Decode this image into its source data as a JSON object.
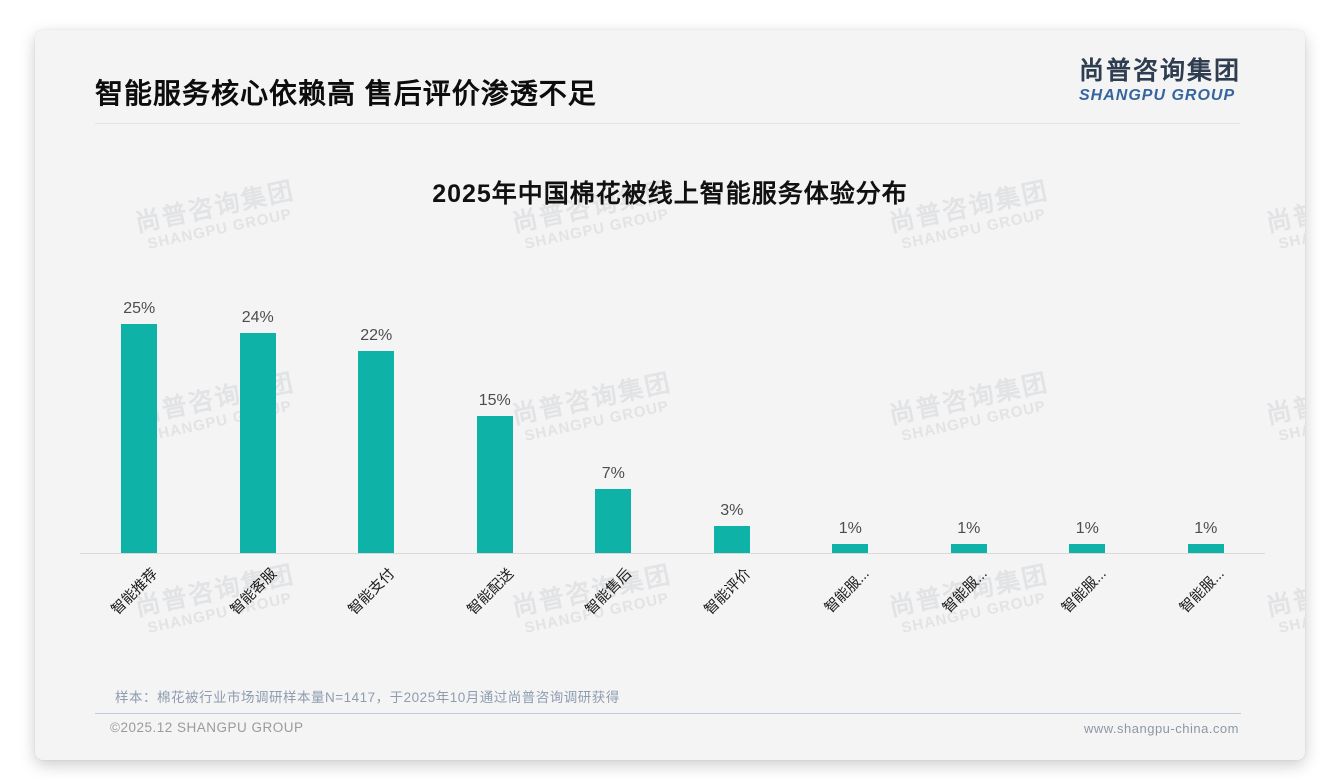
{
  "page": {
    "title": "智能服务核心依赖高 售后评价渗透不足",
    "logo": {
      "cn": "尚普咨询集团",
      "en": "SHANGPU GROUP"
    },
    "watermark": {
      "cn": "尚普咨询集团",
      "en": "SHANGPU GROUP"
    },
    "note": "样本：棉花被行业市场调研样本量N=1417，于2025年10月通过尚普咨询调研获得",
    "footer": {
      "left": "©2025.12 SHANGPU GROUP",
      "right": "www.shangpu-china.com"
    }
  },
  "chart_data": {
    "type": "bar",
    "title": "2025年中国棉花被线上智能服务体验分布",
    "categories": [
      "智能推荐",
      "智能客服",
      "智能支付",
      "智能配送",
      "智能售后",
      "智能评价",
      "智能服...",
      "智能服...",
      "智能服...",
      "智能服..."
    ],
    "values": [
      25,
      24,
      22,
      15,
      7,
      3,
      1,
      1,
      1,
      1
    ],
    "value_labels": [
      "25%",
      "24%",
      "22%",
      "15%",
      "7%",
      "3%",
      "1%",
      "1%",
      "1%",
      "1%"
    ],
    "unit": "%",
    "bar_color": "#0eb2a7",
    "ylim": [
      0,
      28
    ],
    "grid": false,
    "legend": null,
    "xlabel": "",
    "ylabel": ""
  }
}
